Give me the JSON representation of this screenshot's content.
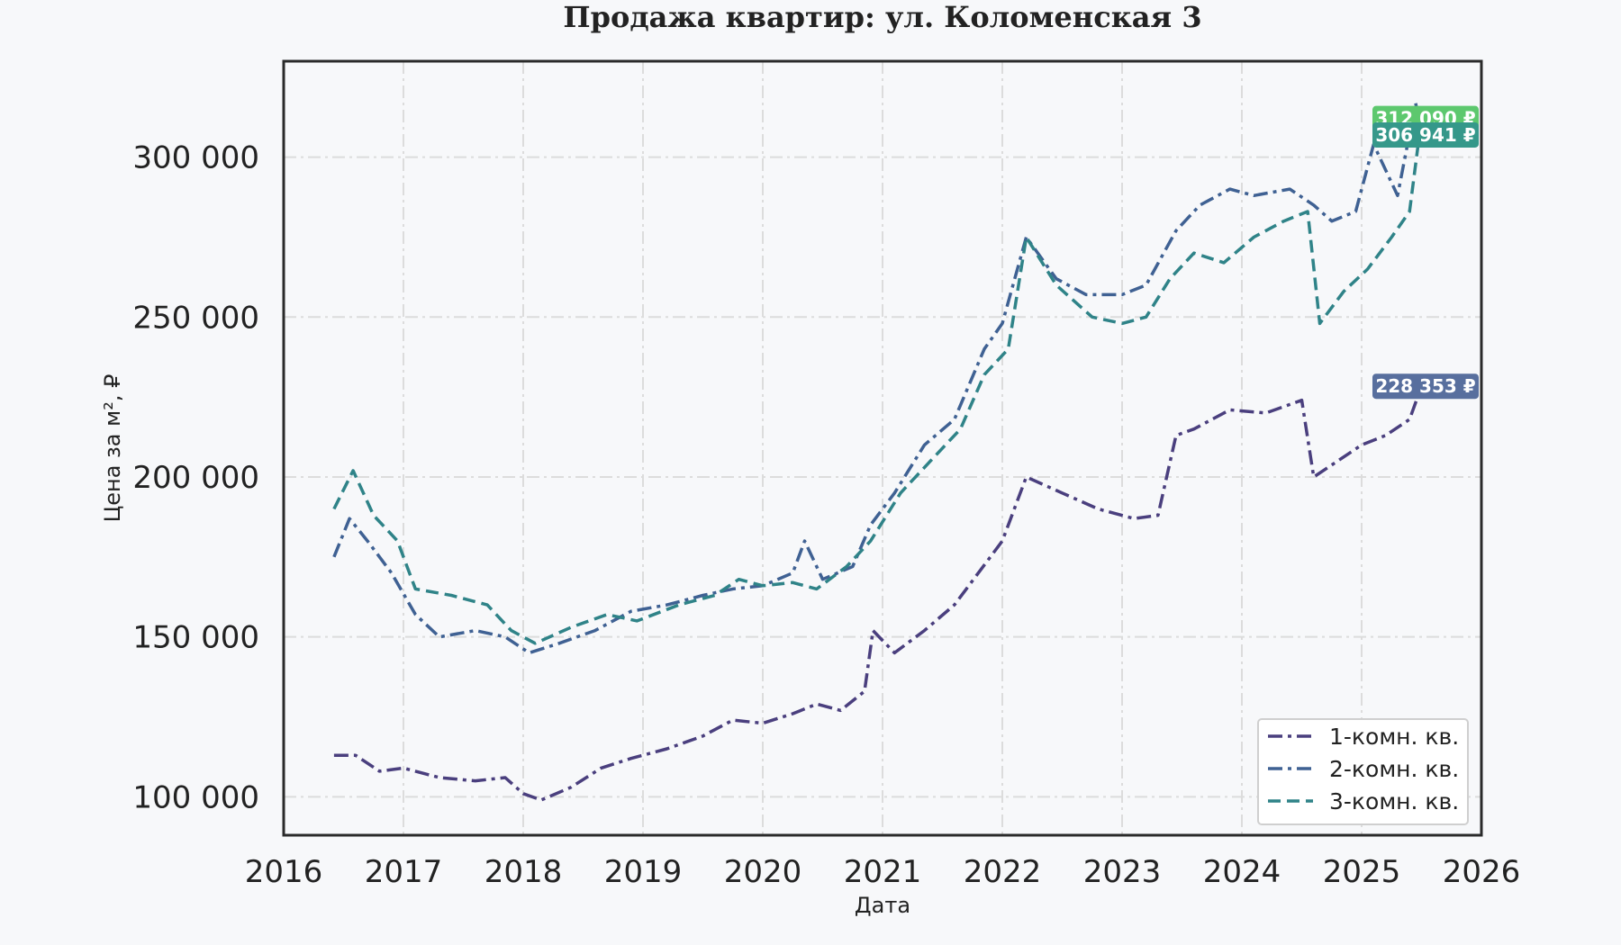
{
  "chart_data": {
    "type": "line",
    "title": "Продажа квартир: ул. Коломенская 3",
    "xlabel": "Дата",
    "ylabel": "Цена за м², ₽",
    "xlim": [
      2016,
      2026
    ],
    "ylim": [
      88000,
      330000
    ],
    "x_ticks": [
      "2016",
      "2017",
      "2018",
      "2019",
      "2020",
      "2021",
      "2022",
      "2023",
      "2024",
      "2025",
      "2026"
    ],
    "y_ticks": [
      {
        "value": 100000,
        "label": "100 000"
      },
      {
        "value": 150000,
        "label": "150 000"
      },
      {
        "value": 200000,
        "label": "200 000"
      },
      {
        "value": 250000,
        "label": "250 000"
      },
      {
        "value": 300000,
        "label": "300 000"
      }
    ],
    "grid": true,
    "legend_position": "bottom-right",
    "series": [
      {
        "name": "1-комн. кв.",
        "color": "#4a3f7e",
        "dash": "dashdot",
        "x": [
          2016.42,
          2016.6,
          2016.8,
          2017.0,
          2017.3,
          2017.6,
          2017.85,
          2018.0,
          2018.15,
          2018.4,
          2018.65,
          2018.9,
          2019.2,
          2019.5,
          2019.75,
          2020.0,
          2020.25,
          2020.45,
          2020.65,
          2020.85,
          2020.92,
          2021.1,
          2021.35,
          2021.6,
          2021.8,
          2022.0,
          2022.2,
          2022.5,
          2022.8,
          2023.1,
          2023.3,
          2023.45,
          2023.6,
          2023.9,
          2024.2,
          2024.5,
          2024.6,
          2024.8,
          2025.0,
          2025.2,
          2025.4,
          2025.5
        ],
        "values": [
          113000,
          113000,
          108000,
          109000,
          106000,
          105000,
          106000,
          101000,
          99000,
          103000,
          109000,
          112000,
          115000,
          119000,
          124000,
          123000,
          126000,
          129000,
          127000,
          133000,
          152000,
          145000,
          152000,
          160000,
          170000,
          180000,
          200000,
          195000,
          190000,
          187000,
          188000,
          213000,
          215000,
          221000,
          220000,
          224000,
          200000,
          205000,
          210000,
          213000,
          218000,
          228353
        ]
      },
      {
        "name": "2-комн. кв.",
        "color": "#3f6193",
        "dash": "dashdot",
        "x": [
          2016.42,
          2016.55,
          2016.7,
          2016.9,
          2017.1,
          2017.3,
          2017.6,
          2017.85,
          2018.05,
          2018.3,
          2018.6,
          2018.9,
          2019.2,
          2019.5,
          2019.75,
          2020.0,
          2020.25,
          2020.35,
          2020.5,
          2020.75,
          2020.9,
          2021.1,
          2021.35,
          2021.6,
          2021.85,
          2022.0,
          2022.2,
          2022.45,
          2022.7,
          2023.0,
          2023.2,
          2023.45,
          2023.65,
          2023.9,
          2024.1,
          2024.4,
          2024.6,
          2024.75,
          2024.95,
          2025.1,
          2025.3,
          2025.45,
          2025.5
        ],
        "values": [
          175000,
          187000,
          180000,
          170000,
          157000,
          150000,
          152000,
          150000,
          145000,
          148000,
          152000,
          158000,
          160000,
          163000,
          165000,
          166000,
          170000,
          180000,
          168000,
          172000,
          185000,
          195000,
          210000,
          218000,
          240000,
          248000,
          275000,
          262000,
          257000,
          257000,
          260000,
          277000,
          285000,
          290000,
          288000,
          290000,
          285000,
          280000,
          283000,
          304000,
          288000,
          317000,
          306941
        ]
      },
      {
        "name": "3-комн. кв.",
        "color": "#2f8388",
        "dash": "dashed",
        "x": [
          2016.42,
          2016.58,
          2016.75,
          2016.95,
          2017.1,
          2017.4,
          2017.7,
          2017.9,
          2018.1,
          2018.4,
          2018.7,
          2018.95,
          2019.3,
          2019.6,
          2019.8,
          2020.0,
          2020.25,
          2020.45,
          2020.7,
          2020.9,
          2021.15,
          2021.4,
          2021.65,
          2021.85,
          2022.05,
          2022.2,
          2022.45,
          2022.75,
          2023.0,
          2023.2,
          2023.4,
          2023.6,
          2023.85,
          2024.1,
          2024.35,
          2024.55,
          2024.65,
          2024.85,
          2025.05,
          2025.25,
          2025.4,
          2025.5
        ],
        "values": [
          190000,
          202000,
          188000,
          180000,
          165000,
          163000,
          160000,
          152000,
          148000,
          153000,
          157000,
          155000,
          160000,
          163000,
          168000,
          166000,
          167000,
          165000,
          172000,
          180000,
          195000,
          205000,
          215000,
          232000,
          240000,
          275000,
          260000,
          250000,
          248000,
          250000,
          262000,
          270000,
          267000,
          275000,
          280000,
          283000,
          248000,
          258000,
          265000,
          275000,
          283000,
          312090
        ]
      }
    ],
    "annotations": [
      {
        "text": "312 090 ₽",
        "value": 312090,
        "color": "#5dc86e"
      },
      {
        "text": "306 941 ₽",
        "value": 306941,
        "color": "#35988a"
      },
      {
        "text": "228 353 ₽",
        "value": 228353,
        "color": "#586f9e"
      }
    ]
  }
}
